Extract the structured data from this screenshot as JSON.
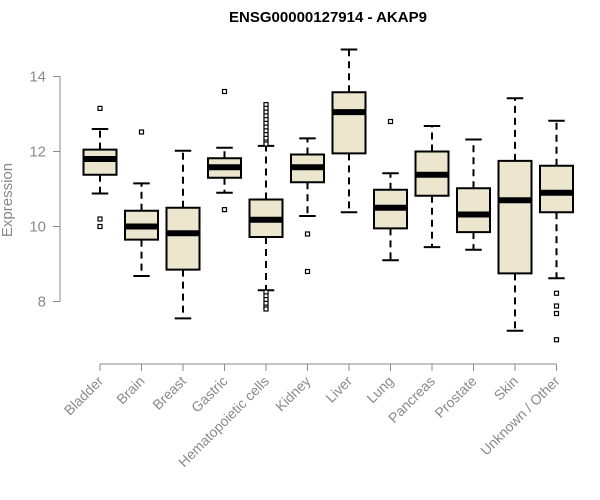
{
  "chart_data": {
    "type": "boxplot",
    "title": "ENSG00000127914 - AKAP9",
    "xlabel": "",
    "ylabel": "Expression",
    "ylim": [
      6.6,
      15.0
    ],
    "yticks": [
      8,
      10,
      12,
      14
    ],
    "grid": false,
    "colors": {
      "box_fill": "#ede6cf",
      "stroke": "#000000",
      "axis": "#8a8a8a"
    },
    "categories": [
      "Bladder",
      "Brain",
      "Breast",
      "Gastric",
      "Hematopoietic cells",
      "Kidney",
      "Liver",
      "Lung",
      "Pancreas",
      "Prostate",
      "Skin",
      "Unknown / Other"
    ],
    "boxes": [
      {
        "min": 10.88,
        "q1": 11.38,
        "median": 11.8,
        "q3": 12.05,
        "max": 12.6,
        "outliers": [
          13.15,
          10.2,
          10.0
        ]
      },
      {
        "min": 8.68,
        "q1": 9.65,
        "median": 10.0,
        "q3": 10.42,
        "max": 11.15,
        "outliers": [
          12.52
        ]
      },
      {
        "min": 7.55,
        "q1": 8.85,
        "median": 9.82,
        "q3": 10.5,
        "max": 12.02,
        "outliers": []
      },
      {
        "min": 10.9,
        "q1": 11.3,
        "median": 11.58,
        "q3": 11.82,
        "max": 12.1,
        "outliers": [
          13.6,
          10.45
        ]
      },
      {
        "min": 8.3,
        "q1": 9.72,
        "median": 10.18,
        "q3": 10.72,
        "max": 12.15,
        "outliers": [
          13.25,
          13.15,
          13.05,
          12.95,
          12.85,
          12.75,
          12.65,
          12.55,
          12.45,
          12.35,
          12.25,
          12.2,
          8.25,
          8.15,
          8.05,
          7.95,
          7.85,
          7.8
        ]
      },
      {
        "min": 10.28,
        "q1": 11.18,
        "median": 11.58,
        "q3": 11.92,
        "max": 12.35,
        "outliers": [
          9.8,
          8.8
        ]
      },
      {
        "min": 10.38,
        "q1": 11.95,
        "median": 13.05,
        "q3": 13.58,
        "max": 14.72,
        "outliers": []
      },
      {
        "min": 9.1,
        "q1": 9.95,
        "median": 10.5,
        "q3": 10.98,
        "max": 11.42,
        "outliers": [
          12.8
        ]
      },
      {
        "min": 9.45,
        "q1": 10.82,
        "median": 11.38,
        "q3": 12.0,
        "max": 12.68,
        "outliers": []
      },
      {
        "min": 9.38,
        "q1": 9.85,
        "median": 10.32,
        "q3": 11.02,
        "max": 12.32,
        "outliers": []
      },
      {
        "min": 7.22,
        "q1": 8.75,
        "median": 10.7,
        "q3": 11.75,
        "max": 13.42,
        "outliers": []
      },
      {
        "min": 8.62,
        "q1": 10.38,
        "median": 10.9,
        "q3": 11.62,
        "max": 12.82,
        "outliers": [
          8.22,
          7.88,
          7.68,
          6.98
        ]
      }
    ]
  }
}
